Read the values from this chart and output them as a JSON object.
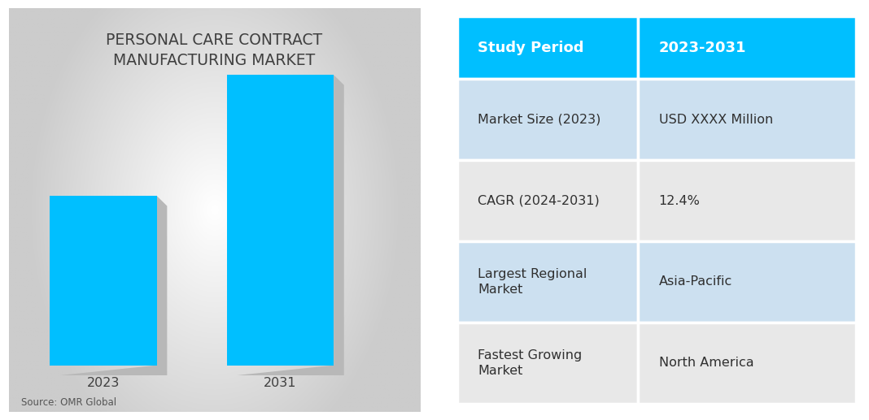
{
  "title": "PERSONAL CARE CONTRACT\nMANUFACTURING MARKET",
  "title_fontsize": 13.5,
  "title_color": "#404040",
  "bar_years": [
    "2023",
    "2031"
  ],
  "bar_values": [
    0.42,
    0.72
  ],
  "bar_color": "#00BFFF",
  "bar_shadow_color": "#b8b8b8",
  "source_text": "Source: OMR Global",
  "table_header_bg": "#00BFFF",
  "table_header_text_color": "#ffffff",
  "table_row1_bg": "#cce0f0",
  "table_row2_bg": "#e8e8e8",
  "table_header_font": 13,
  "table_cell_font": 11.5,
  "table_rows": [
    [
      "Market Size (2023)",
      "USD XXXX Million"
    ],
    [
      "CAGR (2024-2031)",
      "12.4%"
    ],
    [
      "Largest Regional\nMarket",
      "Asia-Pacific"
    ],
    [
      "Fastest Growing\nMarket",
      "North America"
    ]
  ],
  "table_col_labels": [
    "Study Period",
    "2023-2031"
  ]
}
